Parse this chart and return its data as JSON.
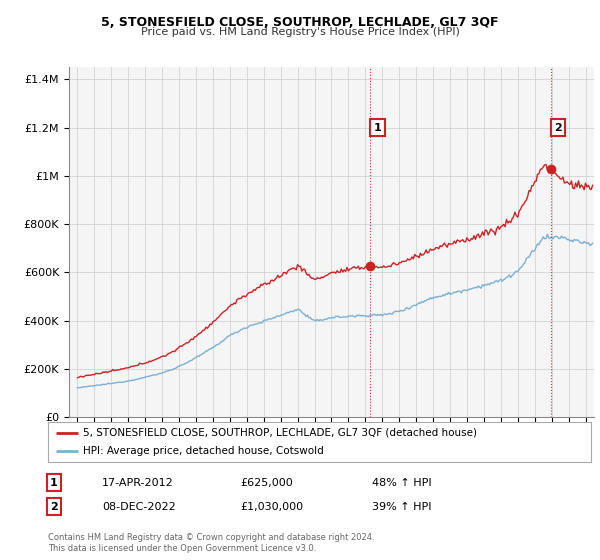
{
  "title": "5, STONESFIELD CLOSE, SOUTHROP, LECHLADE, GL7 3QF",
  "subtitle": "Price paid vs. HM Land Registry's House Price Index (HPI)",
  "legend_line1": "5, STONESFIELD CLOSE, SOUTHROP, LECHLADE, GL7 3QF (detached house)",
  "legend_line2": "HPI: Average price, detached house, Cotswold",
  "sale1_label": "1",
  "sale1_date": "17-APR-2012",
  "sale1_price": "£625,000",
  "sale1_hpi": "48% ↑ HPI",
  "sale1_x": 2012.29,
  "sale1_y": 625000,
  "sale2_label": "2",
  "sale2_date": "08-DEC-2022",
  "sale2_price": "£1,030,000",
  "sale2_hpi": "39% ↑ HPI",
  "sale2_x": 2022.94,
  "sale2_y": 1030000,
  "footer": "Contains HM Land Registry data © Crown copyright and database right 2024.\nThis data is licensed under the Open Government Licence v3.0.",
  "red_color": "#cc2222",
  "blue_color": "#7ab0d4",
  "ylim": [
    0,
    1450000
  ],
  "xlim": [
    1994.5,
    2025.5
  ],
  "yticks": [
    0,
    200000,
    400000,
    600000,
    800000,
    1000000,
    1200000,
    1400000
  ],
  "ytick_labels": [
    "£0",
    "£200K",
    "£400K",
    "£600K",
    "£800K",
    "£1M",
    "£1.2M",
    "£1.4M"
  ],
  "plot_bg": "#f5f5f5",
  "fig_bg": "#ffffff"
}
